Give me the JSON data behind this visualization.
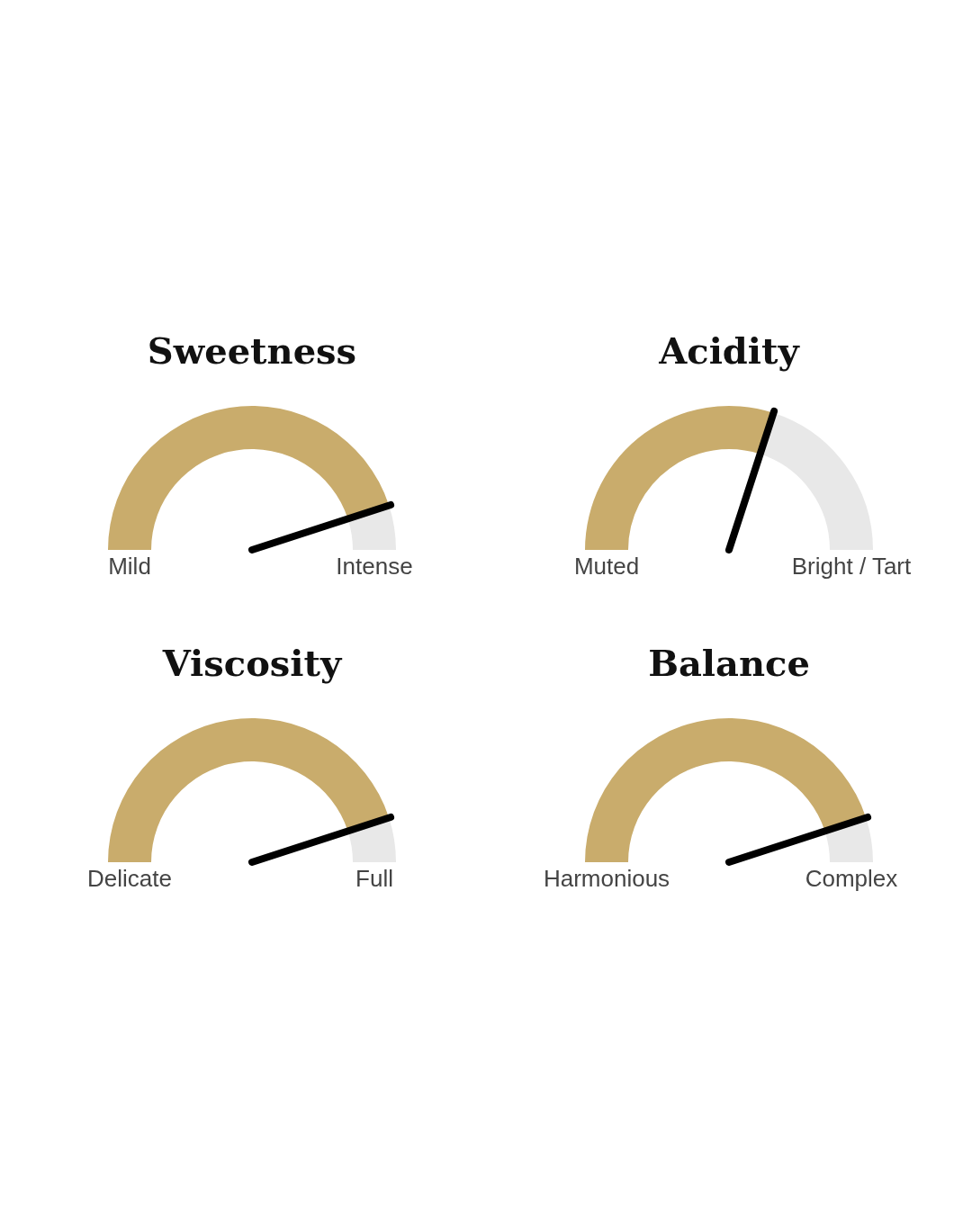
{
  "chart_data": [
    {
      "type": "donut",
      "title": "Sweetness",
      "categories": [
        null,
        null
      ],
      "values": [
        90,
        10
      ],
      "colors": [
        "#c9ac6c",
        "#e8e8e8"
      ],
      "annotations": [
        "Mild",
        "Intense"
      ]
    },
    {
      "type": "donut",
      "title": "Acidity",
      "categories": [
        null,
        null
      ],
      "values": [
        60,
        40
      ],
      "colors": [
        "#c9ac6c",
        "#e8e8e8"
      ],
      "annotations": [
        "Muted",
        "Bright / Tart"
      ]
    },
    {
      "type": "donut",
      "title": "Viscosity",
      "categories": [
        null,
        null
      ],
      "values": [
        90,
        10
      ],
      "colors": [
        "#c9ac6c",
        "#e8e8e8"
      ],
      "annotations": [
        "Delicate",
        "Full"
      ]
    },
    {
      "type": "donut",
      "title": "Balance",
      "categories": [
        null,
        null
      ],
      "values": [
        90,
        10
      ],
      "colors": [
        "#c9ac6c",
        "#e8e8e8"
      ],
      "annotations": [
        "Harmonious",
        "Complex"
      ]
    }
  ]
}
